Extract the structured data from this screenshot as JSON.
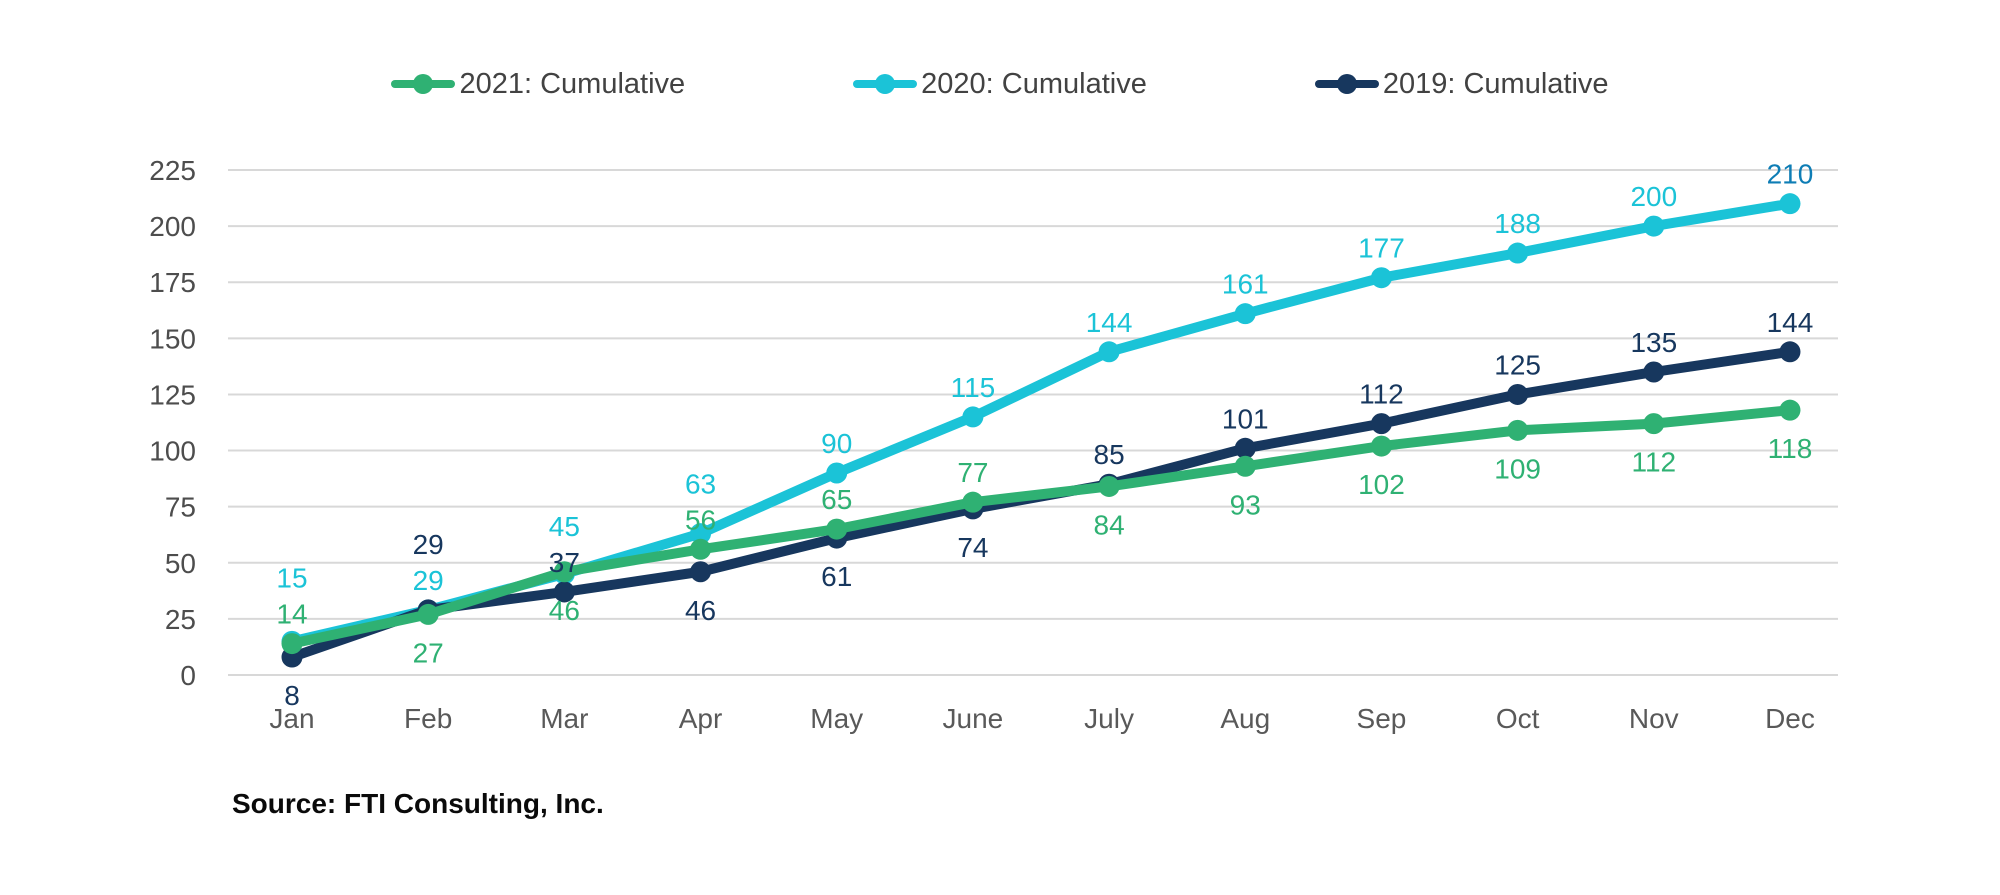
{
  "legend": {
    "position": "top",
    "items": [
      {
        "label": "2021: Cumulative",
        "color": "#2FB173"
      },
      {
        "label": "2020: Cumulative",
        "color": "#1BC3D7"
      },
      {
        "label": "2019: Cumulative",
        "color": "#17375E"
      }
    ]
  },
  "source_note": "Source: FTI Consulting, Inc.",
  "chart_data": {
    "type": "line",
    "title": "",
    "xlabel": "",
    "ylabel": "",
    "categories": [
      "Jan",
      "Feb",
      "Mar",
      "Apr",
      "May",
      "June",
      "July",
      "Aug",
      "Sep",
      "Oct",
      "Nov",
      "Dec"
    ],
    "series": [
      {
        "name": "2021: Cumulative",
        "color": "#2FB173",
        "values": [
          14,
          27,
          46,
          56,
          65,
          77,
          84,
          93,
          102,
          109,
          112,
          118
        ],
        "label_placement": [
          "above",
          "below",
          "below",
          "above",
          "above",
          "above",
          "below",
          "below",
          "below",
          "below",
          "below",
          "below"
        ]
      },
      {
        "name": "2020: Cumulative",
        "color": "#1BC3D7",
        "values": [
          15,
          29,
          45,
          63,
          90,
          115,
          144,
          161,
          177,
          188,
          200,
          210
        ],
        "label_placement": [
          "above",
          "above",
          "above",
          "above",
          "above",
          "above",
          "above",
          "above",
          "above",
          "above",
          "above",
          "above"
        ],
        "last_label_color": "#0E7DB5"
      },
      {
        "name": "2019: Cumulative",
        "color": "#17375E",
        "values": [
          8,
          29,
          37,
          46,
          61,
          74,
          85,
          101,
          112,
          125,
          135,
          144
        ],
        "label_placement": [
          "below",
          "above",
          "above",
          "below",
          "below",
          "below",
          "above",
          "above",
          "above",
          "above",
          "above",
          "above"
        ]
      }
    ],
    "draw_order": [
      1,
      2,
      0
    ],
    "ylim": [
      0,
      225
    ],
    "yticks": [
      0,
      25,
      50,
      75,
      100,
      125,
      150,
      175,
      200,
      225
    ],
    "grid": true,
    "legend_position": "top",
    "colors": {
      "gridline": "#D8D8D8",
      "tick_label": "#4D4D4D",
      "month_label": "#595959"
    }
  }
}
